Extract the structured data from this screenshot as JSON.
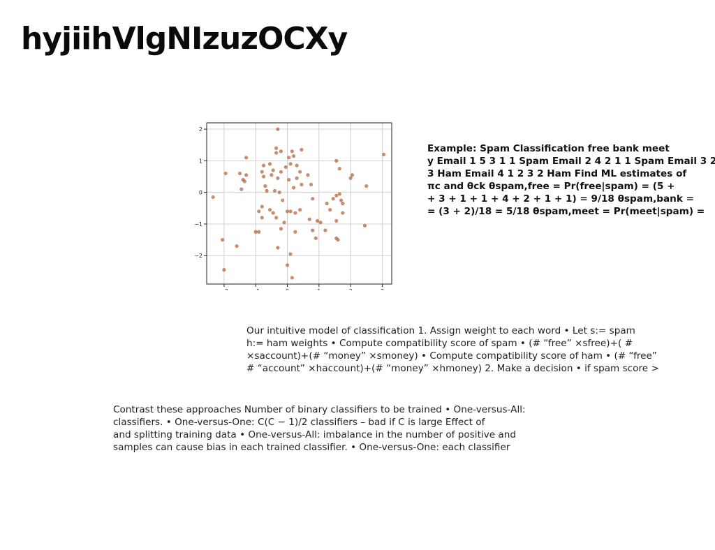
{
  "page": {
    "title": "hyjiihVlgNIzuzOCXy"
  },
  "example_block": {
    "lines": [
      "Example: Spam Classification free bank meet",
      "y Email 1 5 3 1 1 Spam Email 2 4 2 1 1 Spam Email 3 2 1",
      "3 Ham Email 4 1 2 3 2 Ham Find ML estimates of",
      "πc and θck θspam,free = Pr(free|spam) = (5 +",
      "+ 3 + 1 + 1 + 4 + 2 + 1 + 1) = 9/18 θspam,bank =",
      "= (3 + 2)/18 = 5/18 θspam,meet = Pr(meet|spam) ="
    ]
  },
  "intuitive_model": {
    "lines": [
      "Our intuitive model of classification 1. Assign weight to each word • Let s:= spam",
      "h:= ham weights • Compute compatibility score of spam • (# “free” ×sfree)+( #",
      "×saccount)+(# “money” ×smoney) • Compute compatibility score of ham • (# “free”",
      "# “account” ×haccount)+(# “money” ×hmoney) 2. Make a decision • if spam score >"
    ]
  },
  "contrast_approaches": {
    "lines": [
      "Contrast these approaches Number of binary classifiers to be trained • One-versus-All:",
      "classifiers. • One-versus-One: C(C − 1)/2 classifiers – bad if C is large Effect of",
      "and splitting training data • One-versus-All: imbalance in the number of positive and",
      "samples can cause bias in each trained classifier. • One-versus-One: each classifier"
    ]
  },
  "chart_data": {
    "type": "scatter",
    "title": "",
    "xlabel": "",
    "ylabel": "",
    "xlim": [
      -2.55,
      3.3
    ],
    "ylim": [
      -2.9,
      2.2
    ],
    "xticks": [
      -2,
      -1,
      0,
      1,
      2,
      3
    ],
    "yticks": [
      2,
      1,
      0,
      -1,
      -2
    ],
    "xtick_labels": [
      "−2",
      "−1",
      "0",
      "1",
      "2",
      "3"
    ],
    "ytick_labels": [
      "2",
      "1",
      "0",
      "−1",
      "−2"
    ],
    "grid": true,
    "marker_color": "#b5653f",
    "points": [
      [
        -0.3,
        2.0
      ],
      [
        -0.35,
        1.4
      ],
      [
        -0.35,
        1.25
      ],
      [
        -0.2,
        1.3
      ],
      [
        0.15,
        1.3
      ],
      [
        0.45,
        1.35
      ],
      [
        -1.3,
        1.1
      ],
      [
        0.2,
        1.15
      ],
      [
        0.05,
        1.1
      ],
      [
        -1.95,
        0.6
      ],
      [
        -0.55,
        0.9
      ],
      [
        -0.75,
        0.85
      ],
      [
        -0.05,
        0.8
      ],
      [
        0.1,
        0.9
      ],
      [
        0.3,
        0.85
      ],
      [
        -0.45,
        0.7
      ],
      [
        -0.2,
        0.65
      ],
      [
        -0.5,
        0.55
      ],
      [
        -0.8,
        0.65
      ],
      [
        -1.5,
        0.6
      ],
      [
        -1.3,
        0.55
      ],
      [
        -1.4,
        0.4
      ],
      [
        -1.35,
        0.35
      ],
      [
        -1.45,
        0.1
      ],
      [
        -0.75,
        0.5
      ],
      [
        -0.3,
        0.45
      ],
      [
        0.05,
        0.4
      ],
      [
        0.3,
        0.45
      ],
      [
        0.4,
        0.65
      ],
      [
        0.65,
        0.55
      ],
      [
        0.75,
        0.25
      ],
      [
        0.45,
        0.25
      ],
      [
        0.2,
        0.15
      ],
      [
        -0.4,
        0.05
      ],
      [
        -0.25,
        0.0
      ],
      [
        -0.65,
        0.05
      ],
      [
        -0.7,
        0.2
      ],
      [
        -2.35,
        -0.15
      ],
      [
        0.8,
        -0.2
      ],
      [
        -0.8,
        -0.45
      ],
      [
        -0.9,
        -0.6
      ],
      [
        -0.55,
        -0.55
      ],
      [
        -0.45,
        -0.65
      ],
      [
        -0.15,
        -0.25
      ],
      [
        0.0,
        -0.6
      ],
      [
        0.1,
        -0.6
      ],
      [
        0.25,
        -0.65
      ],
      [
        0.4,
        -0.55
      ],
      [
        -0.8,
        -0.8
      ],
      [
        -0.35,
        -0.8
      ],
      [
        0.95,
        -0.9
      ],
      [
        1.05,
        -0.95
      ],
      [
        0.7,
        -0.85
      ],
      [
        -0.1,
        -0.95
      ],
      [
        -0.2,
        -1.15
      ],
      [
        -1.0,
        -1.25
      ],
      [
        -0.9,
        -1.25
      ],
      [
        0.25,
        -1.25
      ],
      [
        0.8,
        -1.2
      ],
      [
        0.9,
        -1.45
      ],
      [
        -2.05,
        -1.5
      ],
      [
        -1.6,
        -1.7
      ],
      [
        -0.3,
        -1.75
      ],
      [
        0.1,
        -1.95
      ],
      [
        0.0,
        -2.3
      ],
      [
        0.15,
        -2.7
      ],
      [
        -2.0,
        -2.45
      ],
      [
        1.25,
        -0.35
      ],
      [
        1.45,
        -0.2
      ],
      [
        1.55,
        -0.1
      ],
      [
        1.65,
        -0.05
      ],
      [
        1.7,
        -0.25
      ],
      [
        1.75,
        -0.35
      ],
      [
        1.75,
        -0.65
      ],
      [
        1.35,
        -0.55
      ],
      [
        1.55,
        -0.9
      ],
      [
        1.2,
        -1.2
      ],
      [
        1.55,
        -1.45
      ],
      [
        1.6,
        -1.5
      ],
      [
        1.55,
        1.0
      ],
      [
        1.65,
        0.75
      ],
      [
        2.05,
        0.55
      ],
      [
        2.0,
        0.45
      ],
      [
        2.5,
        0.2
      ],
      [
        2.45,
        -1.05
      ],
      [
        3.05,
        1.2
      ]
    ]
  }
}
